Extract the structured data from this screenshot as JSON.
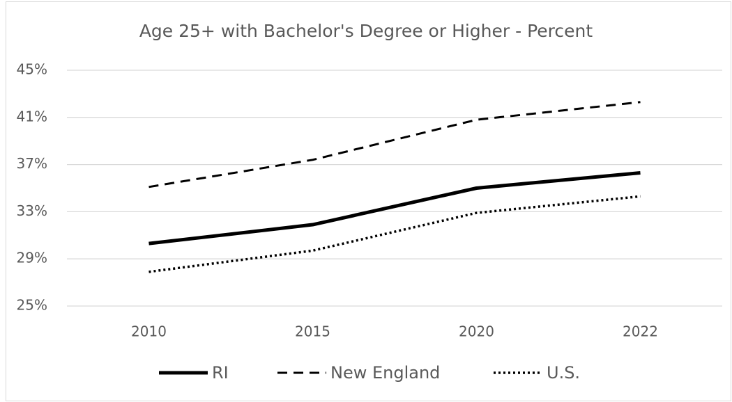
{
  "chart_data": {
    "type": "line",
    "title": "Age 25+ with Bachelor's Degree or Higher - Percent",
    "categories": [
      "2010",
      "2015",
      "2020",
      "2022"
    ],
    "series": [
      {
        "name": "RI",
        "color": "#000000",
        "dash": "solid",
        "values": [
          30.3,
          31.9,
          35.0,
          36.3
        ]
      },
      {
        "name": "New England",
        "color": "#000000",
        "dash": "dashed",
        "values": [
          35.1,
          37.4,
          40.8,
          42.3
        ]
      },
      {
        "name": "U.S.",
        "color": "#000000",
        "dash": "dotted",
        "values": [
          27.9,
          29.7,
          32.9,
          34.3
        ]
      }
    ],
    "ylim": [
      25,
      45
    ],
    "yticks": [
      {
        "value": 25,
        "label": "25%"
      },
      {
        "value": 29,
        "label": "29%"
      },
      {
        "value": 33,
        "label": "33%"
      },
      {
        "value": 37,
        "label": "37%"
      },
      {
        "value": 41,
        "label": "41%"
      },
      {
        "value": 45,
        "label": "45%"
      }
    ],
    "grid": true,
    "legend": "bottom"
  }
}
